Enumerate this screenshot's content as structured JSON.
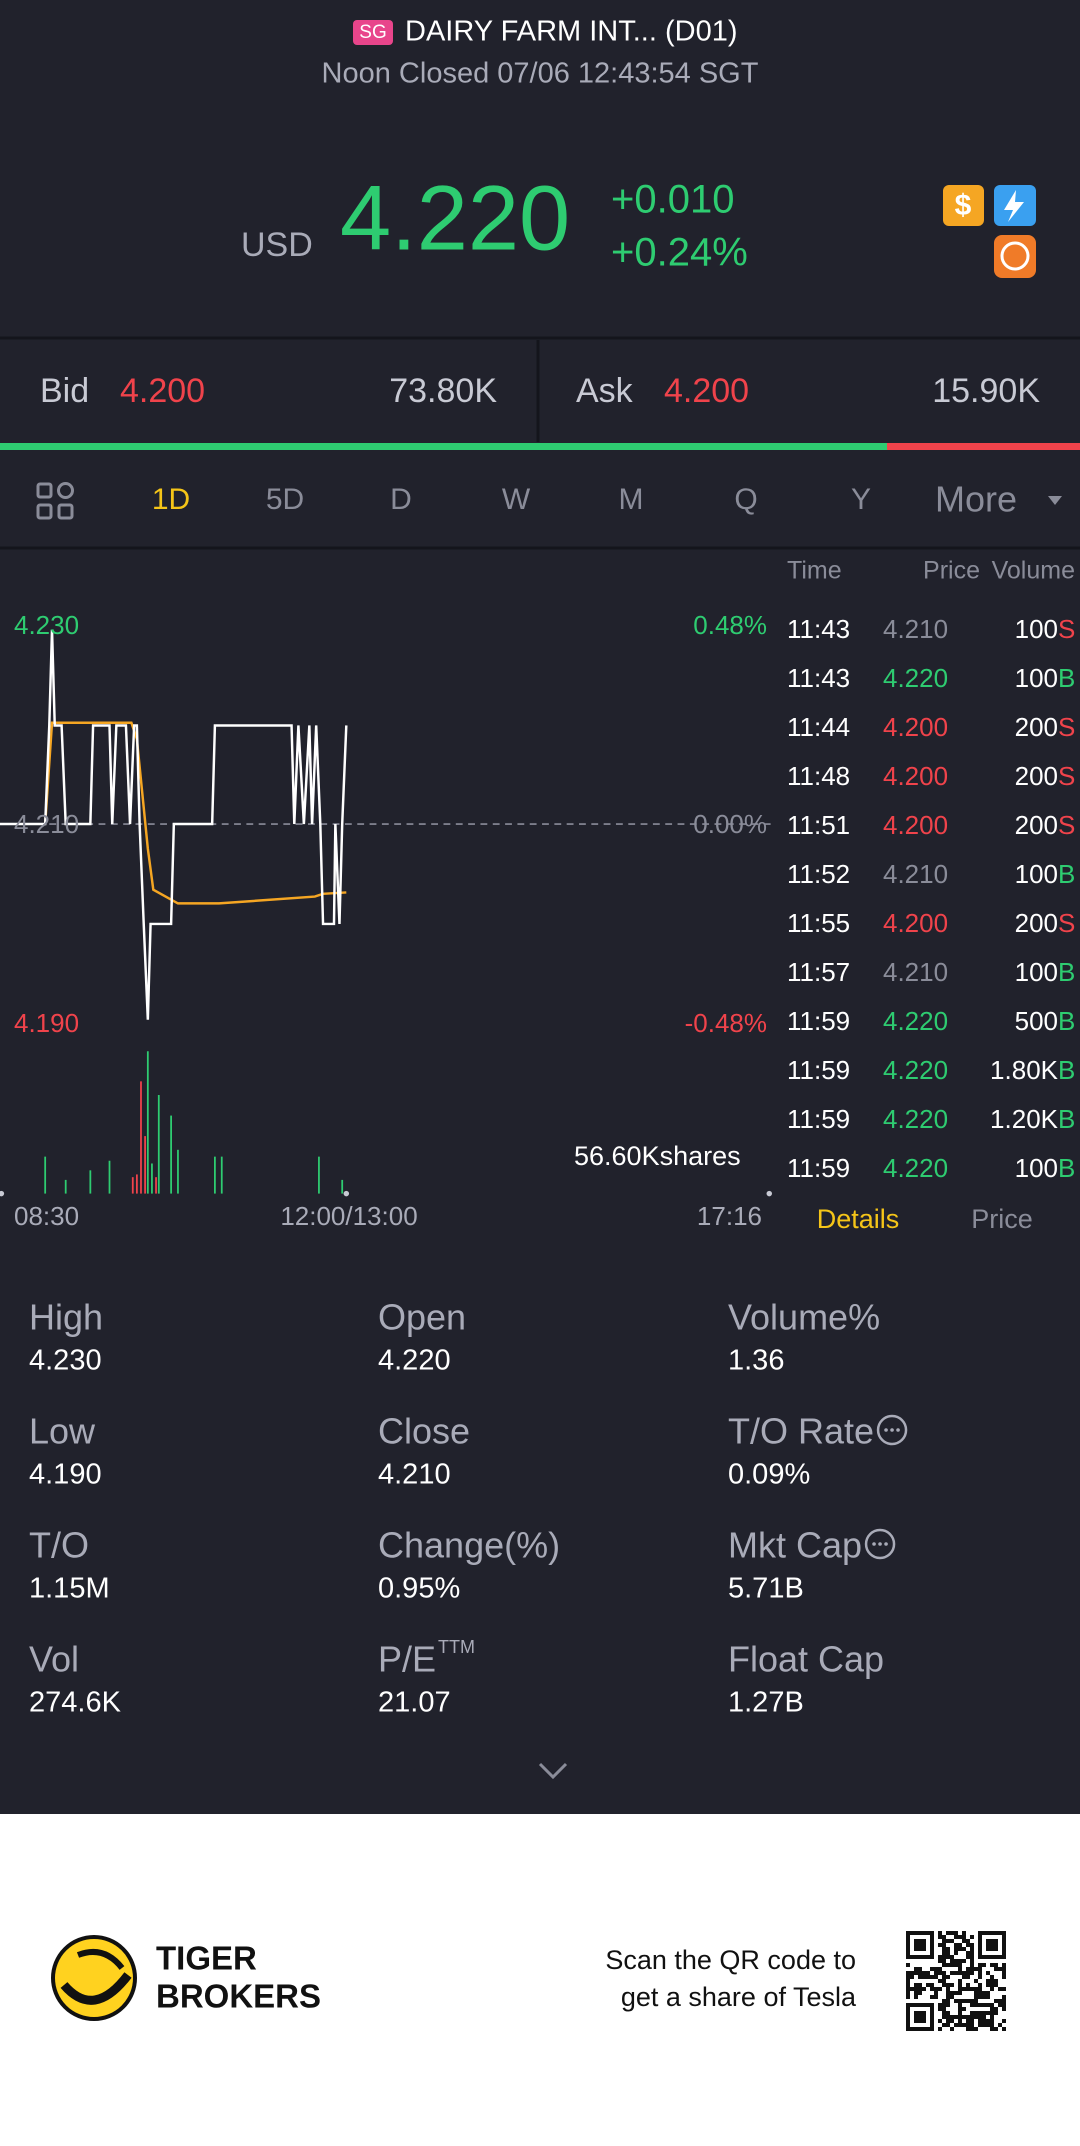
{
  "header": {
    "market": "SG",
    "title": "DAIRY FARM INT... (D01)",
    "status": "Noon Closed 07/06 12:43:54 SGT"
  },
  "quote": {
    "currency": "USD",
    "price": "4.220",
    "change": "+0.010",
    "change_pct": "+0.24%"
  },
  "bid": {
    "label": "Bid",
    "price": "4.200",
    "size": "73.80K"
  },
  "ask": {
    "label": "Ask",
    "price": "4.200",
    "size": "15.90K"
  },
  "tabs": [
    "1D",
    "5D",
    "D",
    "W",
    "M",
    "Q",
    "Y",
    "More"
  ],
  "chart": {
    "price_labels": [
      "4.230",
      "4.210",
      "4.190"
    ],
    "pct_labels": [
      "0.48%",
      "0.00%",
      "-0.48%"
    ],
    "volume": "56.60Kshares",
    "times": [
      "08:30",
      "12:00/13:00",
      "17:16"
    ]
  },
  "trades": {
    "columns": [
      "Time",
      "Price",
      "Volume"
    ],
    "rows": [
      [
        "11:43",
        "4.210",
        "100",
        "S"
      ],
      [
        "11:43",
        "4.220",
        "100",
        "B"
      ],
      [
        "11:44",
        "4.200",
        "200",
        "S"
      ],
      [
        "11:48",
        "4.200",
        "200",
        "S"
      ],
      [
        "11:51",
        "4.200",
        "200",
        "S"
      ],
      [
        "11:52",
        "4.210",
        "100",
        "B"
      ],
      [
        "11:55",
        "4.200",
        "200",
        "S"
      ],
      [
        "11:57",
        "4.210",
        "100",
        "B"
      ],
      [
        "11:59",
        "4.220",
        "500",
        "B"
      ],
      [
        "11:59",
        "4.220",
        "1.80K",
        "B"
      ],
      [
        "11:59",
        "4.220",
        "1.20K",
        "B"
      ],
      [
        "11:59",
        "4.220",
        "100",
        "B"
      ]
    ]
  },
  "panel_tabs": [
    "Details",
    "Price"
  ],
  "stats": [
    {
      "label": "High",
      "value": "4.230"
    },
    {
      "label": "Open",
      "value": "4.220"
    },
    {
      "label": "Volume%",
      "value": "1.36"
    },
    {
      "label": "Low",
      "value": "4.190"
    },
    {
      "label": "Close",
      "value": "4.210"
    },
    {
      "label": "T/O Rate",
      "value": "0.09%"
    },
    {
      "label": "T/O",
      "value": "1.15M"
    },
    {
      "label": "Change(%)",
      "value": "0.95%"
    },
    {
      "label": "Mkt Cap",
      "value": "5.71B"
    },
    {
      "label": "Vol",
      "value": "274.6K"
    },
    {
      "label": "P/E",
      "sup": "TTM",
      "value": "21.07"
    },
    {
      "label": "Float Cap",
      "value": "1.27B"
    }
  ],
  "footer": {
    "brand": [
      "TIGER",
      "BROKERS"
    ],
    "promo": [
      "Scan the QR code to",
      "get a share of Tesla"
    ]
  }
}
